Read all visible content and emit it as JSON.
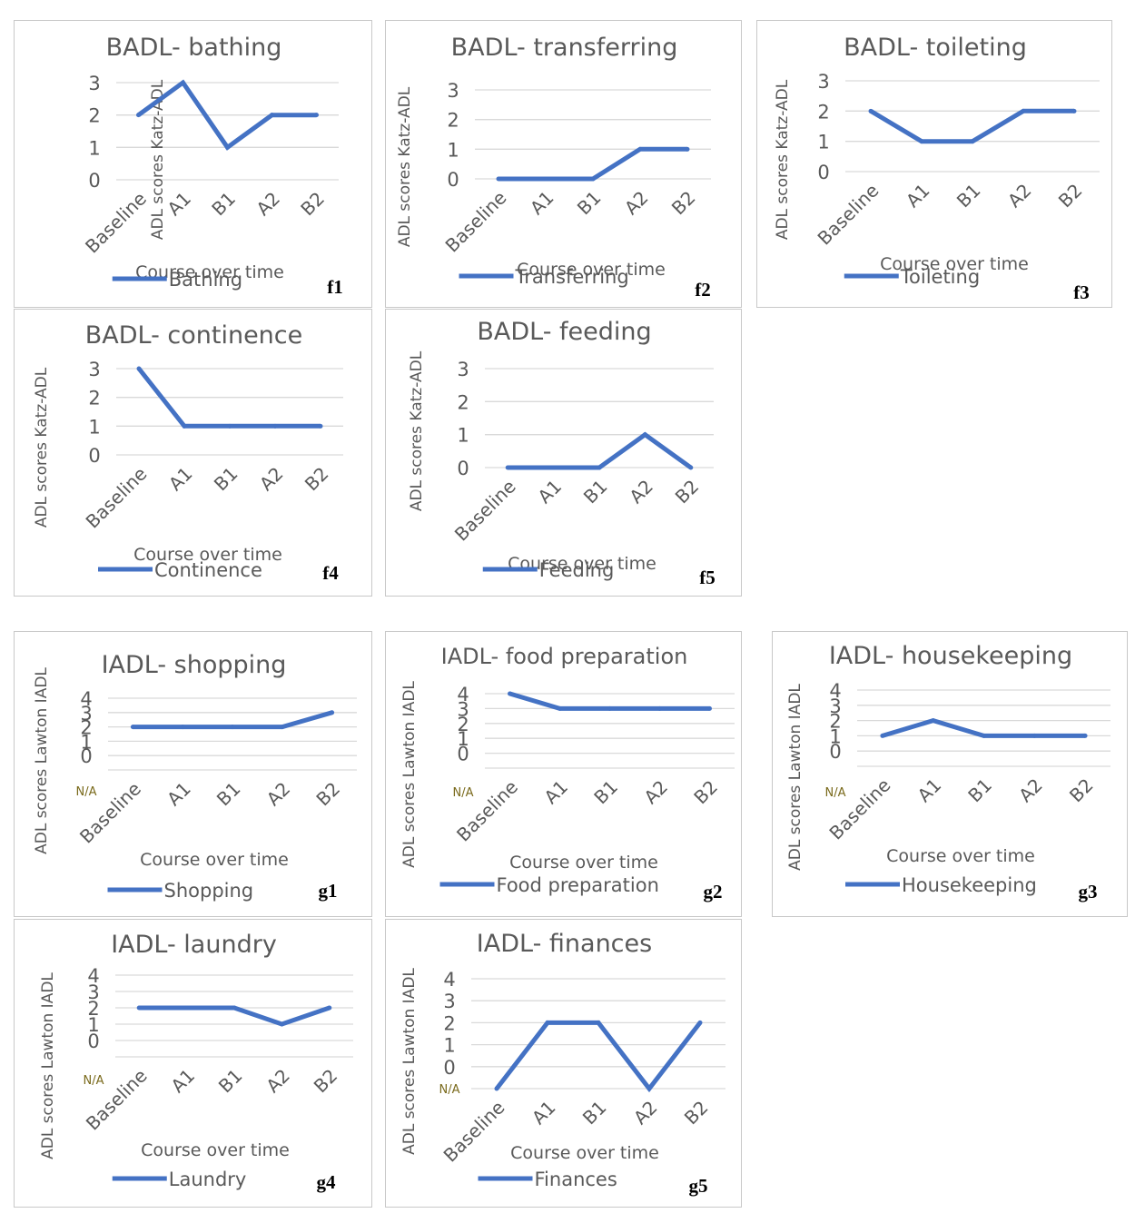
{
  "colors": {
    "series": "#4472c4",
    "grid": "#d9d9d9",
    "text": "#595959",
    "na": "#7a6a1c"
  },
  "chart_data": [
    {
      "id": "f1",
      "type": "line",
      "title": "BADL- bathing",
      "ylabel": "ADL scores Katz-ADL",
      "xlabel": "Course over time",
      "categories": [
        "Baseline",
        "A1",
        "B1",
        "A2",
        "B2"
      ],
      "series": [
        {
          "name": "Bathing",
          "values": [
            2,
            3,
            1,
            2,
            2
          ]
        }
      ],
      "yticks": [
        "0",
        "1",
        "2",
        "3"
      ],
      "ylim": [
        0,
        3
      ],
      "na_label": null,
      "panel_label": "f1"
    },
    {
      "id": "f2",
      "type": "line",
      "title": "BADL- transferring",
      "ylabel": "ADL scores Katz-ADL",
      "xlabel": "Course over time",
      "categories": [
        "Baseline",
        "A1",
        "B1",
        "A2",
        "B2"
      ],
      "series": [
        {
          "name": "Transferring",
          "values": [
            0,
            0,
            0,
            1,
            1
          ]
        }
      ],
      "yticks": [
        "0",
        "1",
        "2",
        "3"
      ],
      "ylim": [
        0,
        3
      ],
      "na_label": null,
      "panel_label": "f2"
    },
    {
      "id": "f3",
      "type": "line",
      "title": "BADL- toileting",
      "ylabel": "ADL scores Katz-ADL",
      "xlabel": "Course over time",
      "categories": [
        "Baseline",
        "A1",
        "B1",
        "A2",
        "B2"
      ],
      "series": [
        {
          "name": "Toileting",
          "values": [
            2,
            1,
            1,
            2,
            2
          ]
        }
      ],
      "yticks": [
        "0",
        "1",
        "2",
        "3"
      ],
      "ylim": [
        0,
        3
      ],
      "na_label": null,
      "panel_label": "f3"
    },
    {
      "id": "f4",
      "type": "line",
      "title": "BADL- continence",
      "ylabel": "ADL scores Katz-ADL",
      "xlabel": "Course over time",
      "categories": [
        "Baseline",
        "A1",
        "B1",
        "A2",
        "B2"
      ],
      "series": [
        {
          "name": "Continence",
          "values": [
            3,
            1,
            1,
            1,
            1
          ]
        }
      ],
      "yticks": [
        "0",
        "1",
        "2",
        "3"
      ],
      "ylim": [
        0,
        3
      ],
      "na_label": null,
      "panel_label": "f4"
    },
    {
      "id": "f5",
      "type": "line",
      "title": "BADL- feeding",
      "ylabel": "ADL scores Katz-ADL",
      "xlabel": "Course over time",
      "categories": [
        "Baseline",
        "A1",
        "B1",
        "A2",
        "B2"
      ],
      "series": [
        {
          "name": "Feeding",
          "values": [
            0,
            0,
            0,
            1,
            0
          ]
        }
      ],
      "yticks": [
        "0",
        "1",
        "2",
        "3"
      ],
      "ylim": [
        0,
        3
      ],
      "na_label": null,
      "panel_label": "f5"
    },
    {
      "id": "g1",
      "type": "line",
      "title": "IADL- shopping",
      "ylabel": "ADL scores Lawton IADL",
      "xlabel": "Course over time",
      "categories": [
        "Baseline",
        "A1",
        "B1",
        "A2",
        "B2"
      ],
      "series": [
        {
          "name": "Shopping",
          "values": [
            2,
            2,
            2,
            2,
            3
          ]
        }
      ],
      "yticks": [
        "0",
        "1",
        "2",
        "3",
        "4"
      ],
      "ylim": [
        -1,
        4
      ],
      "na_label": "N/A",
      "panel_label": "g1"
    },
    {
      "id": "g2",
      "type": "line",
      "title": "IADL- food preparation",
      "ylabel": "ADL scores Lawton IADL",
      "xlabel": "Course over time",
      "categories": [
        "Baseline",
        "A1",
        "B1",
        "A2",
        "B2"
      ],
      "series": [
        {
          "name": "Food preparation",
          "values": [
            4,
            3,
            3,
            3,
            3
          ]
        }
      ],
      "yticks": [
        "0",
        "1",
        "2",
        "3",
        "4"
      ],
      "ylim": [
        -1,
        4
      ],
      "na_label": "N/A",
      "panel_label": "g2"
    },
    {
      "id": "g3",
      "type": "line",
      "title": "IADL- housekeeping",
      "ylabel": "ADL scores Lawton IADL",
      "xlabel": "Course over time",
      "categories": [
        "Baseline",
        "A1",
        "B1",
        "A2",
        "B2"
      ],
      "series": [
        {
          "name": "Housekeeping",
          "values": [
            1,
            2,
            1,
            1,
            1
          ]
        }
      ],
      "yticks": [
        "0",
        "1",
        "2",
        "3",
        "4"
      ],
      "ylim": [
        -1,
        4
      ],
      "na_label": "N/A",
      "panel_label": "g3"
    },
    {
      "id": "g4",
      "type": "line",
      "title": "IADL- laundry",
      "ylabel": "ADL scores Lawton IADL",
      "xlabel": "Course over time",
      "categories": [
        "Baseline",
        "A1",
        "B1",
        "A2",
        "B2"
      ],
      "series": [
        {
          "name": "Laundry",
          "values": [
            2,
            2,
            2,
            1,
            2
          ]
        }
      ],
      "yticks": [
        "0",
        "1",
        "2",
        "3",
        "4"
      ],
      "ylim": [
        -1,
        4
      ],
      "na_label": "N/A",
      "panel_label": "g4"
    },
    {
      "id": "g5",
      "type": "line",
      "title": "IADL- finances",
      "ylabel": "ADL scores Lawton IADL",
      "xlabel": "Course over time",
      "categories": [
        "Baseline",
        "A1",
        "B1",
        "A2",
        "B2"
      ],
      "series": [
        {
          "name": "Finances",
          "values": [
            -1,
            2,
            2,
            -1,
            2
          ]
        }
      ],
      "yticks": [
        "0",
        "1",
        "2",
        "3",
        "4"
      ],
      "ylim": [
        -1,
        4
      ],
      "na_label": "N/A",
      "panel_label": "g5"
    }
  ]
}
